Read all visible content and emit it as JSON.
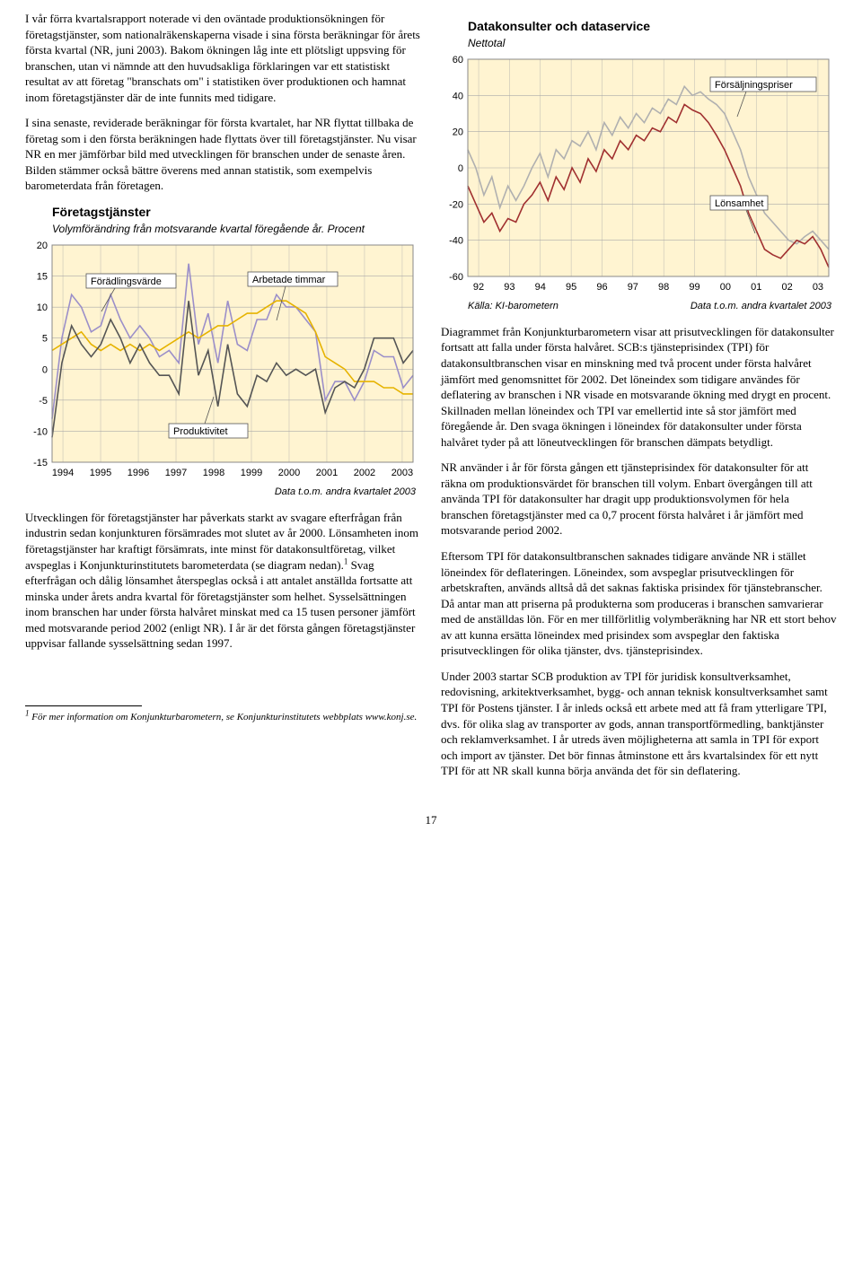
{
  "leftCol": {
    "p1": "I vår förra kvartalsrapport noterade vi den oväntade produktionsökningen för företagstjänster, som nationalräkenskaperna visade i sina första beräkningar för årets första kvartal (NR, juni 2003). Bakom ökningen låg inte ett plötsligt uppsving för branschen, utan vi nämnde att den huvudsakliga förklaringen var ett statistiskt resultat av att företag \"branschats om\" i statistiken över produktionen och hamnat inom företagstjänster där de inte funnits med tidigare.",
    "p2": "I sina senaste, reviderade beräkningar för första kvartalet, har NR flyttat tillbaka de företag som i den första beräkningen hade flyttats över till företagstjänster. Nu visar NR en mer jämförbar bild med utvecklingen för branschen under de senaste åren. Bilden stämmer också bättre överens med annan statistik, som exempelvis barometerdata från företagen.",
    "p3a": "Utvecklingen för företagstjänster har påverkats starkt av svagare efterfrågan från industrin sedan konjunkturen försämrades mot slutet av år 2000. Lönsamheten inom företagstjänster har kraftigt försämrats, inte minst för datakonsultföretag, vilket avspeglas i Konjunkturinstitutets barometerdata (se diagram nedan).",
    "p3b": " Svag efterfrågan och dålig lönsamhet återspeglas också i att antalet anställda fortsatte att minska under årets andra kvartal för företagstjänster som helhet. Sysselsättningen inom branschen har under första halvåret minskat med ca 15 tusen personer jämfört med motsvarande period 2002 (enligt NR). I år är det första gången företagstjänster uppvisar fallande sysselsättning sedan 1997."
  },
  "chart1": {
    "title": "Företagstjänster",
    "subtitle": "Volymförändring från motsvarande kvartal föregående år. Procent",
    "source_right": "Data t.o.m. andra kvartalet 2003",
    "bg": "#fff4d1",
    "grid": "#aaaaaa",
    "border": "#888888",
    "label_boxes": {
      "foradling": "Förädlingsvärde",
      "arbetade": "Arbetade timmar",
      "produktivitet": "Produktivitet"
    },
    "colors": {
      "foradling": "#9b8fc9",
      "arbetade": "#e6b300",
      "produktivitet": "#555555"
    },
    "ylim": [
      -15,
      20
    ],
    "ytick": [
      -15,
      -10,
      -5,
      0,
      5,
      10,
      15,
      20
    ],
    "xlabels": [
      "1994",
      "1995",
      "1996",
      "1997",
      "1998",
      "1999",
      "2000",
      "2001",
      "2002",
      "2003"
    ],
    "series": {
      "foradling": [
        -8,
        5,
        12,
        10,
        6,
        7,
        12,
        8,
        5,
        7,
        5,
        2,
        3,
        1,
        17,
        4,
        9,
        1,
        11,
        4,
        3,
        8,
        8,
        12,
        10,
        10,
        8,
        6,
        -5,
        -2,
        -2,
        -5,
        -2,
        3,
        2,
        2,
        -3,
        -1
      ],
      "arbetade": [
        3,
        4,
        5,
        6,
        4,
        3,
        4,
        3,
        4,
        3,
        4,
        3,
        4,
        5,
        6,
        5,
        6,
        7,
        7,
        8,
        9,
        9,
        10,
        11,
        11,
        10,
        9,
        6,
        2,
        1,
        0,
        -2,
        -2,
        -2,
        -3,
        -3,
        -4,
        -4
      ],
      "produktivitet": [
        -11,
        1,
        7,
        4,
        2,
        4,
        8,
        5,
        1,
        4,
        1,
        -1,
        -1,
        -4,
        11,
        -1,
        3,
        -6,
        4,
        -4,
        -6,
        -1,
        -2,
        1,
        -1,
        0,
        -1,
        0,
        -7,
        -3,
        -2,
        -3,
        0,
        5,
        5,
        5,
        1,
        3
      ]
    }
  },
  "chart2": {
    "title": "Datakonsulter och dataservice",
    "subtitle": "Nettotal",
    "source_left": "Källa: KI-barometern",
    "source_right": "Data t.o.m. andra kvartalet 2003",
    "bg": "#fff4d1",
    "grid": "#aaaaaa",
    "border": "#888888",
    "label_boxes": {
      "forsaljning": "Försäljningspriser",
      "lonsamhet": "Lönsamhet"
    },
    "colors": {
      "forsaljning": "#b0b0b0",
      "lonsamhet": "#a03030"
    },
    "ylim": [
      -60,
      60
    ],
    "ytick": [
      -60,
      -40,
      -20,
      0,
      20,
      40,
      60
    ],
    "xlabels": [
      "92",
      "93",
      "94",
      "95",
      "96",
      "97",
      "98",
      "99",
      "00",
      "01",
      "02",
      "03"
    ],
    "series": {
      "forsaljning": [
        10,
        0,
        -15,
        -5,
        -22,
        -10,
        -18,
        -10,
        0,
        8,
        -5,
        10,
        5,
        15,
        12,
        20,
        10,
        25,
        18,
        28,
        22,
        30,
        25,
        33,
        30,
        38,
        35,
        45,
        40,
        42,
        38,
        35,
        30,
        20,
        10,
        -5,
        -15,
        -25,
        -30,
        -35,
        -40,
        -42,
        -38,
        -35,
        -40,
        -45
      ],
      "lonsamhet": [
        -10,
        -20,
        -30,
        -25,
        -35,
        -28,
        -30,
        -20,
        -15,
        -8,
        -18,
        -5,
        -12,
        0,
        -8,
        5,
        -2,
        10,
        5,
        15,
        10,
        18,
        15,
        22,
        20,
        28,
        25,
        35,
        32,
        30,
        25,
        18,
        10,
        0,
        -10,
        -25,
        -35,
        -45,
        -48,
        -50,
        -45,
        -40,
        -42,
        -38,
        -45,
        -55
      ]
    }
  },
  "rightCol": {
    "p1": "Diagrammet från Konjunkturbarometern visar att prisutvecklingen för datakonsulter fortsatt att falla under första halvåret. SCB:s tjänsteprisindex (TPI) för datakonsultbranschen visar en minskning med två procent under första halvåret jämfört med genomsnittet för 2002. Det löneindex som tidigare användes för deflatering av branschen i NR visade en motsvarande ökning med drygt en procent. Skillnaden mellan löneindex och TPI var emellertid inte så stor jämfört med föregående år. Den svaga ökningen i löneindex för datakonsulter under första halvåret tyder på att löneutvecklingen för branschen dämpats betydligt.",
    "p2": "NR använder i år för första gången ett tjänsteprisindex för datakonsulter för att räkna om produktionsvärdet för branschen till volym. Enbart övergången till att använda TPI för datakonsulter har dragit upp produktionsvolymen för hela branschen företagstjänster med ca 0,7 procent första halvåret i år jämfört med motsvarande period 2002.",
    "p3": "Eftersom TPI för datakonsultbranschen saknades tidigare använde NR i stället löneindex för deflateringen. Löneindex, som avspeglar prisutvecklingen för arbetskraften, används alltså då det saknas faktiska prisindex för tjänstebranscher. Då antar man att priserna på produkterna som produceras i branschen samvarierar med de anställdas lön. För en mer tillförlitlig volymberäkning har NR ett stort behov av att kunna ersätta löneindex med prisindex som avspeglar den faktiska prisutvecklingen för olika tjänster, dvs. tjänsteprisindex.",
    "p4": "Under 2003 startar SCB produktion av TPI för juridisk konsultverksamhet, redovisning, arkitektverksamhet, bygg- och annan teknisk konsultverksamhet samt TPI för Postens tjänster. I år inleds också ett arbete med att få fram ytterligare TPI, dvs. för olika slag av transporter av gods, annan transportförmedling, banktjänster och reklamverksamhet. I år utreds även möjligheterna att samla in TPI för export och import av tjänster. Det bör finnas åtminstone ett års kvartalsindex för ett nytt TPI för att NR skall kunna börja använda det för sin deflatering."
  },
  "footnote": {
    "marker": "1",
    "text": " För mer information om Konjunkturbarometern, se Konjunkturinstitutets webbplats www.konj.se."
  },
  "pagenum": "17"
}
